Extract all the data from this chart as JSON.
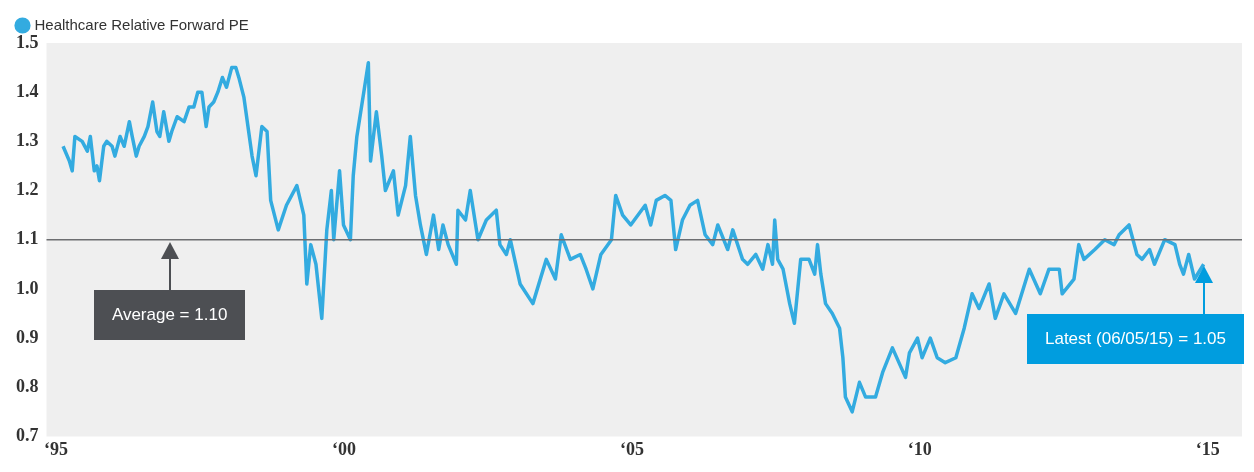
{
  "chart_data": {
    "type": "line",
    "x": [
      "1995-08-14",
      "1995-09-23",
      "1995-10-11",
      "1995-10-28",
      "1995-12-13",
      "1996-01-15",
      "1996-02-03",
      "1996-02-28",
      "1996-03-16",
      "1996-04-01",
      "1996-04-28",
      "1996-05-17",
      "1996-06-20",
      "1996-07-08",
      "1996-08-10",
      "1996-09-05",
      "1996-10-08",
      "1996-10-26",
      "1996-11-21",
      "1996-12-09",
      "1997-01-11",
      "1997-02-03",
      "1997-03-05",
      "1997-04-01",
      "1997-04-19",
      "1997-05-14",
      "1997-06-16",
      "1997-07-04",
      "1997-08-07",
      "1997-09-20",
      "1997-10-22",
      "1997-11-21",
      "1997-12-16",
      "1998-01-11",
      "1998-02-07",
      "1998-02-25",
      "1998-03-27",
      "1998-04-22",
      "1998-05-21",
      "1998-06-16",
      "1998-07-19",
      "1998-08-14",
      "1998-09-02",
      "1998-10-04",
      "1998-11-25",
      "1998-12-20",
      "1999-01-26",
      "1999-02-28",
      "1999-03-23",
      "1999-05-10",
      "1999-07-01",
      "1999-09-05",
      "1999-10-19",
      "1999-11-07",
      "1999-12-02",
      "2000-01-04",
      "2000-02-10",
      "2000-03-13",
      "2000-04-11",
      "2000-04-26",
      "2000-06-02",
      "2000-06-27",
      "2000-08-10",
      "2000-08-28",
      "2000-09-20",
      "2000-11-03",
      "2000-12-02",
      "2000-12-16",
      "2001-01-22",
      "2001-02-25",
      "2001-03-20",
      "2001-05-10",
      "2001-06-09",
      "2001-07-26",
      "2001-08-25",
      "2001-09-27",
      "2001-10-28",
      "2001-12-05",
      "2002-01-19",
      "2002-02-21",
      "2002-03-20",
      "2002-04-22",
      "2002-06-13",
      "2002-06-23",
      "2002-08-10",
      "2002-09-09",
      "2002-10-28",
      "2002-12-20",
      "2003-02-21",
      "2003-03-16",
      "2003-04-26",
      "2003-05-21",
      "2003-07-22",
      "2003-10-11",
      "2004-01-04",
      "2004-03-02",
      "2004-04-08",
      "2004-06-05",
      "2004-08-07",
      "2004-09-13",
      "2004-10-26",
      "2004-12-16",
      "2005-02-21",
      "2005-03-20",
      "2005-05-03",
      "2005-06-23",
      "2005-09-23",
      "2005-10-28",
      "2005-12-02",
      "2006-01-26",
      "2006-03-05",
      "2006-04-04",
      "2006-05-17",
      "2006-07-04",
      "2006-08-21",
      "2006-10-08",
      "2006-11-25",
      "2006-12-27",
      "2007-02-28",
      "2007-04-01",
      "2007-06-02",
      "2007-07-04",
      "2007-08-25",
      "2007-10-08",
      "2007-11-10",
      "2007-12-09",
      "2007-12-23",
      "2008-01-11",
      "2008-02-14",
      "2008-03-27",
      "2008-04-26",
      "2008-06-05",
      "2008-07-28",
      "2008-09-02",
      "2008-09-20",
      "2008-10-11",
      "2008-11-10",
      "2008-12-23",
      "2009-02-07",
      "2009-02-28",
      "2009-03-16",
      "2009-04-28",
      "2009-06-13",
      "2009-07-22",
      "2009-09-23",
      "2009-11-07",
      "2010-01-08",
      "2010-04-01",
      "2010-04-26",
      "2010-06-16",
      "2010-07-15",
      "2010-09-05",
      "2010-10-19",
      "2010-12-09",
      "2011-02-14",
      "2011-04-08",
      "2011-05-28",
      "2011-07-11",
      "2011-09-13",
      "2011-10-22",
      "2011-12-16",
      "2012-02-28",
      "2012-05-25",
      "2012-08-03",
      "2012-09-27",
      "2012-12-02",
      "2012-12-20",
      "2013-03-05",
      "2013-04-04",
      "2013-05-07",
      "2013-07-15",
      "2013-09-16",
      "2013-11-14",
      "2013-12-16",
      "2014-02-17",
      "2014-04-08",
      "2014-05-10",
      "2014-06-27",
      "2014-07-28",
      "2014-10-01",
      "2014-12-05",
      "2015-01-04",
      "2015-01-28",
      "2015-03-02",
      "2015-04-08",
      "2015-06-05"
    ],
    "series": [
      {
        "name": "Healthcare Relative Forward PE",
        "color": "#33abe0",
        "values": [
          1.29,
          1.26,
          1.24,
          1.31,
          1.3,
          1.28,
          1.31,
          1.24,
          1.25,
          1.22,
          1.29,
          1.3,
          1.29,
          1.27,
          1.31,
          1.29,
          1.34,
          1.31,
          1.27,
          1.29,
          1.31,
          1.33,
          1.38,
          1.32,
          1.31,
          1.36,
          1.3,
          1.32,
          1.35,
          1.34,
          1.37,
          1.37,
          1.4,
          1.4,
          1.33,
          1.37,
          1.38,
          1.4,
          1.43,
          1.41,
          1.45,
          1.45,
          1.43,
          1.39,
          1.27,
          1.23,
          1.33,
          1.32,
          1.18,
          1.12,
          1.17,
          1.21,
          1.15,
          1.01,
          1.09,
          1.05,
          0.94,
          1.12,
          1.2,
          1.1,
          1.24,
          1.13,
          1.1,
          1.23,
          1.31,
          1.4,
          1.46,
          1.26,
          1.36,
          1.27,
          1.2,
          1.24,
          1.15,
          1.21,
          1.31,
          1.19,
          1.13,
          1.07,
          1.15,
          1.08,
          1.13,
          1.09,
          1.05,
          1.16,
          1.14,
          1.2,
          1.1,
          1.14,
          1.16,
          1.09,
          1.07,
          1.1,
          1.01,
          0.97,
          1.06,
          1.02,
          1.11,
          1.06,
          1.07,
          1.04,
          1.0,
          1.07,
          1.1,
          1.19,
          1.15,
          1.13,
          1.17,
          1.13,
          1.18,
          1.19,
          1.18,
          1.08,
          1.14,
          1.17,
          1.18,
          1.11,
          1.09,
          1.13,
          1.08,
          1.12,
          1.06,
          1.05,
          1.07,
          1.04,
          1.09,
          1.05,
          1.14,
          1.06,
          1.04,
          0.97,
          0.93,
          1.06,
          1.06,
          1.03,
          1.09,
          1.03,
          0.97,
          0.95,
          0.92,
          0.86,
          0.78,
          0.75,
          0.81,
          0.78,
          0.78,
          0.83,
          0.88,
          0.82,
          0.87,
          0.9,
          0.86,
          0.9,
          0.86,
          0.85,
          0.86,
          0.92,
          0.99,
          0.96,
          1.01,
          0.94,
          0.99,
          0.95,
          1.04,
          0.99,
          1.04,
          1.04,
          0.99,
          1.02,
          1.09,
          1.06,
          1.08,
          1.1,
          1.09,
          1.11,
          1.13,
          1.07,
          1.06,
          1.08,
          1.05,
          1.1,
          1.09,
          1.05,
          1.03,
          1.07,
          1.02,
          1.05
        ]
      }
    ],
    "xlim": [
      "1995-05-01",
      "2016-02-03"
    ],
    "xticks": [
      {
        "value": "1995-07-01",
        "label": "‘95"
      },
      {
        "value": "2000-07-01",
        "label": "‘00"
      },
      {
        "value": "2005-07-01",
        "label": "‘05"
      },
      {
        "value": "2010-07-01",
        "label": "‘10"
      },
      {
        "value": "2015-07-01",
        "label": "‘15"
      }
    ],
    "ylim": [
      0.7,
      1.5
    ],
    "yticks": [
      {
        "value": 0.7,
        "label": "0.7"
      },
      {
        "value": 0.8,
        "label": "0.8"
      },
      {
        "value": 0.9,
        "label": "0.9"
      },
      {
        "value": 1.0,
        "label": "1.0"
      },
      {
        "value": 1.1,
        "label": "1.1"
      },
      {
        "value": 1.2,
        "label": "1.2"
      },
      {
        "value": 1.3,
        "label": "1.3"
      },
      {
        "value": 1.4,
        "label": "1.4"
      },
      {
        "value": 1.5,
        "label": "1.5"
      }
    ],
    "ref_lines": [
      {
        "axis": "y",
        "value": 1.1,
        "color": "#6d6e71"
      }
    ],
    "annotations": [
      "Average = 1.10",
      "Latest (06/05/15) = 1.05"
    ],
    "grid": false,
    "legend": "top left",
    "marker": "none",
    "line_style": "solid"
  }
}
